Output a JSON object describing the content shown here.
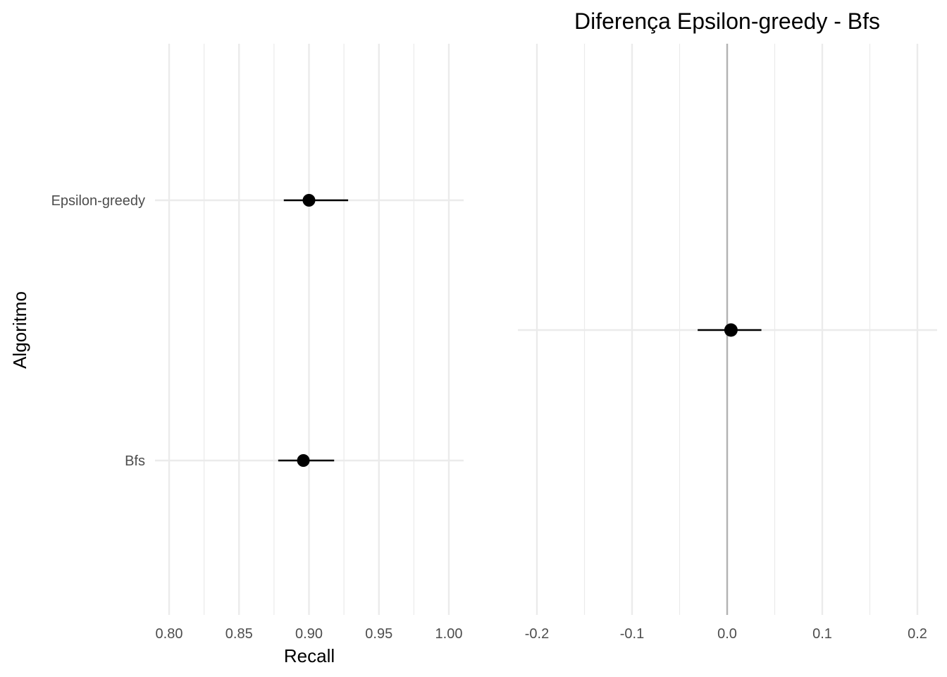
{
  "chart_data": [
    {
      "type": "pointrange",
      "title": "",
      "xlabel": "Recall",
      "ylabel": "Algoritmo",
      "xlim": [
        0.8,
        1.0
      ],
      "x_ticks": [
        "0.80",
        "0.85",
        "0.90",
        "0.95",
        "1.00"
      ],
      "categories": [
        "Epsilon-greedy",
        "Bfs"
      ],
      "series": [
        {
          "points": [
            {
              "category": "Epsilon-greedy",
              "estimate": 0.9,
              "low": 0.882,
              "high": 0.928
            },
            {
              "category": "Bfs",
              "estimate": 0.896,
              "low": 0.878,
              "high": 0.918
            }
          ]
        }
      ],
      "grid": true
    },
    {
      "type": "pointrange",
      "title": "Diferença Epsilon-greedy - Bfs",
      "xlabel": "",
      "ylabel": "",
      "xlim": [
        -0.2,
        0.2
      ],
      "x_ticks": [
        "-0.2",
        "-0.1",
        "0.0",
        "0.1",
        "0.2"
      ],
      "reference_line": 0.0,
      "series": [
        {
          "points": [
            {
              "estimate": 0.004,
              "low": -0.031,
              "high": 0.036
            }
          ]
        }
      ],
      "grid": true
    }
  ],
  "colors": {
    "grid": "#ebebeb",
    "reference_line": "#b3b3b3",
    "points": "#000000"
  }
}
